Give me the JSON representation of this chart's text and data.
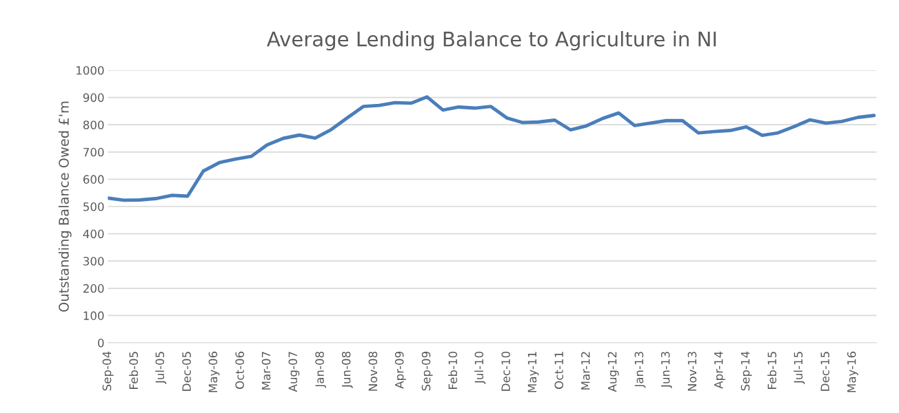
{
  "chart_data": {
    "type": "line",
    "title": "Average Lending Balance to Agriculture in NI",
    "ylabel": "Outstanding Balance Owed £'m",
    "x": [
      "2004-09",
      "2004-12",
      "2005-03",
      "2005-06",
      "2005-09",
      "2005-12",
      "2006-03",
      "2006-06",
      "2006-09",
      "2006-12",
      "2007-03",
      "2007-06",
      "2007-09",
      "2007-12",
      "2008-03",
      "2008-06",
      "2008-09",
      "2008-12",
      "2009-03",
      "2009-06",
      "2009-09",
      "2009-12",
      "2010-03",
      "2010-06",
      "2010-09",
      "2010-12",
      "2011-03",
      "2011-06",
      "2011-09",
      "2011-12",
      "2012-03",
      "2012-06",
      "2012-09",
      "2012-12",
      "2013-03",
      "2013-06",
      "2013-09",
      "2013-12",
      "2014-03",
      "2014-06",
      "2014-09",
      "2014-12",
      "2015-03",
      "2015-06",
      "2015-09",
      "2015-12",
      "2016-03",
      "2016-06",
      "2016-09"
    ],
    "series": [
      {
        "color": "#4a7ebb",
        "values": [
          531,
          523,
          524,
          529,
          541,
          538,
          630,
          661,
          674,
          684,
          726,
          750,
          762,
          751,
          782,
          825,
          867,
          871,
          881,
          879,
          902,
          854,
          865,
          861,
          867,
          825,
          808,
          810,
          817,
          781,
          796,
          823,
          843,
          797,
          806,
          815,
          815,
          770,
          775,
          779,
          792,
          761,
          770,
          793,
          818,
          806,
          812,
          827,
          834
        ]
      }
    ],
    "xlim": [
      "2004-09-01",
      "2016-09-15"
    ],
    "xticks": [
      {
        "value": "2004-09",
        "label": "Sep-04"
      },
      {
        "value": "2005-02",
        "label": "Feb-05"
      },
      {
        "value": "2005-07",
        "label": "Jul-05"
      },
      {
        "value": "2005-12",
        "label": "Dec-05"
      },
      {
        "value": "2006-05",
        "label": "May-06"
      },
      {
        "value": "2006-10",
        "label": "Oct-06"
      },
      {
        "value": "2007-03",
        "label": "Mar-07"
      },
      {
        "value": "2007-08",
        "label": "Aug-07"
      },
      {
        "value": "2008-01",
        "label": "Jan-08"
      },
      {
        "value": "2008-06",
        "label": "Jun-08"
      },
      {
        "value": "2008-11",
        "label": "Nov-08"
      },
      {
        "value": "2009-04",
        "label": "Apr-09"
      },
      {
        "value": "2009-09",
        "label": "Sep-09"
      },
      {
        "value": "2010-02",
        "label": "Feb-10"
      },
      {
        "value": "2010-07",
        "label": "Jul-10"
      },
      {
        "value": "2010-12",
        "label": "Dec-10"
      },
      {
        "value": "2011-05",
        "label": "May-11"
      },
      {
        "value": "2011-10",
        "label": "Oct-11"
      },
      {
        "value": "2012-03",
        "label": "Mar-12"
      },
      {
        "value": "2012-08",
        "label": "Aug-12"
      },
      {
        "value": "2013-01",
        "label": "Jan-13"
      },
      {
        "value": "2013-06",
        "label": "Jun-13"
      },
      {
        "value": "2013-11",
        "label": "Nov-13"
      },
      {
        "value": "2014-04",
        "label": "Apr-14"
      },
      {
        "value": "2014-09",
        "label": "Sep-14"
      },
      {
        "value": "2015-02",
        "label": "Feb-15"
      },
      {
        "value": "2015-07",
        "label": "Jul-15"
      },
      {
        "value": "2015-12",
        "label": "Dec-15"
      },
      {
        "value": "2016-05",
        "label": "May-16"
      }
    ],
    "ylim": [
      0,
      1000
    ],
    "yticks": [
      0,
      100,
      200,
      300,
      400,
      500,
      600,
      700,
      800,
      900,
      1000
    ],
    "grid": "y",
    "marker": "none",
    "line_style": "solid"
  }
}
